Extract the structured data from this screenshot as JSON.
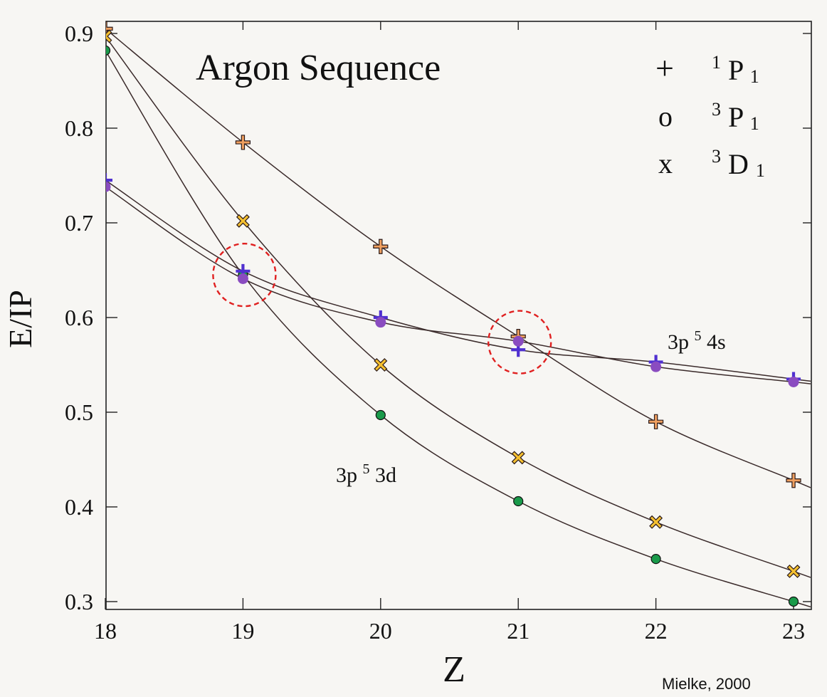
{
  "chart_data": {
    "type": "line",
    "title": "Argon Sequence",
    "xlabel": "Z",
    "ylabel": "E/IP",
    "xlim": [
      18,
      23
    ],
    "ylim": [
      0.29,
      0.915
    ],
    "x_ticks": [
      "18",
      "19",
      "20",
      "21",
      "22",
      "23"
    ],
    "y_ticks": [
      "0.3",
      "0.4",
      "0.5",
      "0.6",
      "0.7",
      "0.8",
      "0.9"
    ],
    "grid": false,
    "legend_position": "top-right",
    "legend": [
      {
        "marker": "+",
        "label_parts": [
          "1",
          "P",
          "1"
        ]
      },
      {
        "marker": "o",
        "label_parts": [
          "3",
          "P",
          "1"
        ]
      },
      {
        "marker": "x",
        "label_parts": [
          "3",
          "D",
          "1"
        ]
      }
    ],
    "annotations": {
      "upper_config": [
        "3p",
        "5",
        "4s"
      ],
      "lower_config": [
        "3p",
        "5",
        "3d"
      ],
      "credit": "Mielke, 2000"
    },
    "highlight_circles": [
      {
        "x": 19,
        "y": 0.645
      },
      {
        "x": 21,
        "y": 0.574
      }
    ],
    "colors": {
      "plus_3d": "#f0a060",
      "plus_4s": "#5030d0",
      "circle_3d": "#1a9a4a",
      "circle_4s": "#8a4cc0",
      "cross_3d": "#f5c030",
      "line": "#3a2a2a",
      "highlight": "#e02020"
    },
    "series": [
      {
        "group": "3p53d",
        "marker": "plus",
        "x": [
          18,
          19,
          20,
          21,
          22,
          23
        ],
        "y": [
          0.905,
          0.785,
          0.675,
          0.58,
          0.49,
          0.428
        ]
      },
      {
        "group": "3p53d",
        "marker": "cross",
        "x": [
          18,
          19,
          20,
          21,
          22,
          23
        ],
        "y": [
          0.897,
          0.702,
          0.55,
          0.452,
          0.384,
          0.332
        ]
      },
      {
        "group": "3p53d",
        "marker": "circle",
        "x": [
          18,
          19,
          20,
          21,
          22,
          23
        ],
        "y": [
          0.882,
          0.645,
          0.497,
          0.406,
          0.345,
          0.3
        ]
      },
      {
        "group": "3p54s",
        "marker": "plus",
        "x": [
          18,
          19,
          20,
          21,
          22,
          23
        ],
        "y": [
          0.745,
          0.649,
          0.6,
          0.566,
          0.553,
          0.535
        ]
      },
      {
        "group": "3p54s",
        "marker": "circle",
        "x": [
          18,
          19,
          20,
          21,
          22,
          23
        ],
        "y": [
          0.738,
          0.641,
          0.595,
          0.575,
          0.548,
          0.532
        ]
      }
    ]
  }
}
